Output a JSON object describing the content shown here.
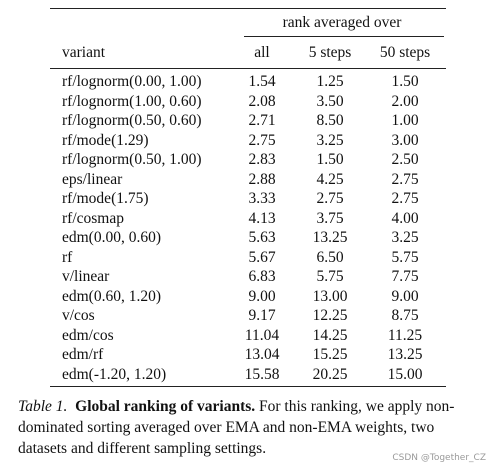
{
  "table": {
    "group_header": "rank averaged over",
    "columns": [
      "variant",
      "all",
      "5 steps",
      "50 steps"
    ],
    "rows": [
      [
        "rf/lognorm(0.00, 1.00)",
        "1.54",
        "1.25",
        "1.50"
      ],
      [
        "rf/lognorm(1.00, 0.60)",
        "2.08",
        "3.50",
        "2.00"
      ],
      [
        "rf/lognorm(0.50, 0.60)",
        "2.71",
        "8.50",
        "1.00"
      ],
      [
        "rf/mode(1.29)",
        "2.75",
        "3.25",
        "3.00"
      ],
      [
        "rf/lognorm(0.50, 1.00)",
        "2.83",
        "1.50",
        "2.50"
      ],
      [
        "eps/linear",
        "2.88",
        "4.25",
        "2.75"
      ],
      [
        "rf/mode(1.75)",
        "3.33",
        "2.75",
        "2.75"
      ],
      [
        "rf/cosmap",
        "4.13",
        "3.75",
        "4.00"
      ],
      [
        "edm(0.00, 0.60)",
        "5.63",
        "13.25",
        "3.25"
      ],
      [
        "rf",
        "5.67",
        "6.50",
        "5.75"
      ],
      [
        "v/linear",
        "6.83",
        "5.75",
        "7.75"
      ],
      [
        "edm(0.60, 1.20)",
        "9.00",
        "13.00",
        "9.00"
      ],
      [
        "v/cos",
        "9.17",
        "12.25",
        "8.75"
      ],
      [
        "edm/cos",
        "11.04",
        "14.25",
        "11.25"
      ],
      [
        "edm/rf",
        "13.04",
        "15.25",
        "13.25"
      ],
      [
        "edm(-1.20, 1.20)",
        "15.58",
        "20.25",
        "15.00"
      ]
    ]
  },
  "caption": {
    "label": "Table 1.",
    "title": "Global ranking of variants.",
    "text": "For this ranking, we apply non-dominated sorting averaged over EMA and non-EMA weights, two datasets and different sampling settings."
  },
  "watermark": "CSDN @Together_CZ"
}
